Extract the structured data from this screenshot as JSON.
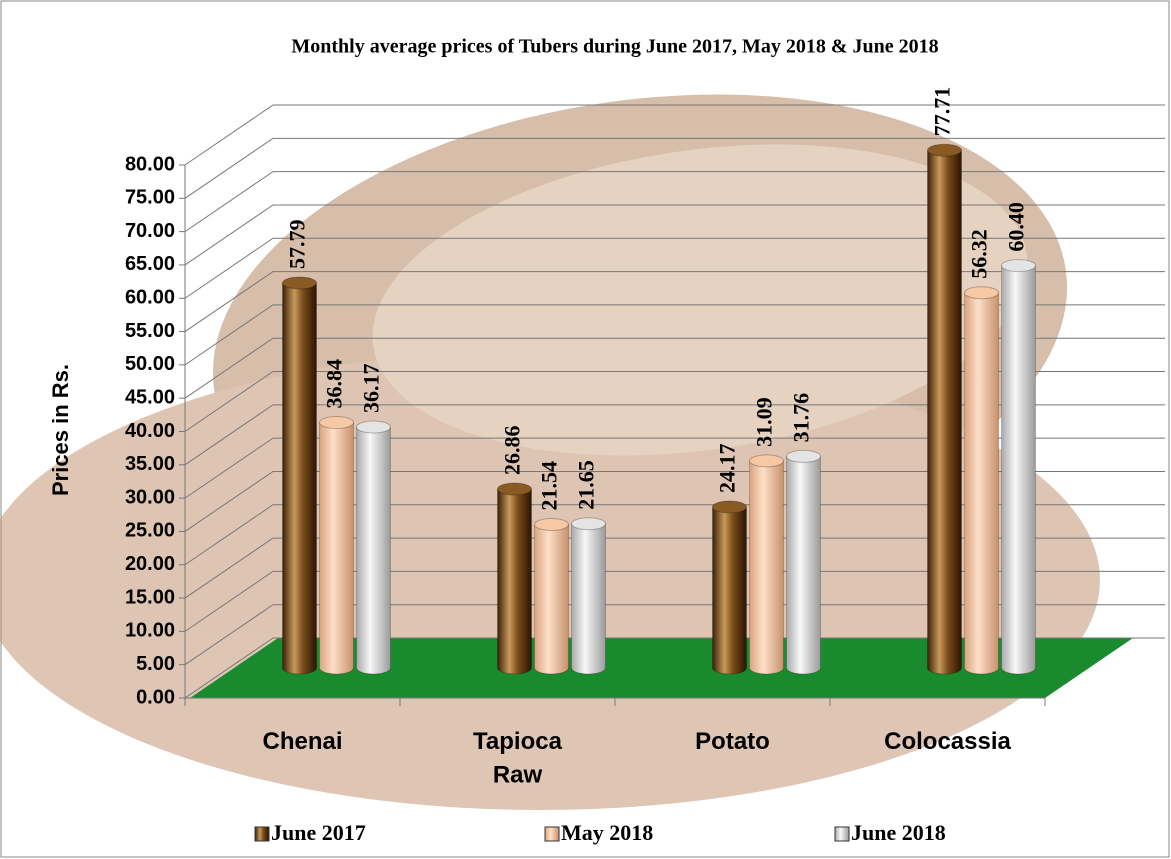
{
  "chart_data": {
    "type": "bar3d",
    "title": "Monthly average prices of Tubers during  June 2017,  May 2018 & June  2018",
    "y_label": "Prices in Rs.",
    "categories": [
      "Chenai",
      "Tapioca Raw",
      "Potato",
      "Colocassia"
    ],
    "series": [
      {
        "name": "June 2017",
        "color": "#8a5a24",
        "values": [
          57.79,
          26.86,
          24.17,
          77.71
        ],
        "value_labels": [
          "57.79",
          "26.86",
          "24.17",
          "77.71"
        ]
      },
      {
        "name": "May  2018",
        "color": "#f6c8a4",
        "values": [
          36.84,
          21.54,
          31.09,
          56.32
        ],
        "value_labels": [
          "36.84",
          "21.54",
          "31.09",
          "56.32"
        ]
      },
      {
        "name": "June 2018",
        "color": "#e4e4e4",
        "values": [
          36.17,
          21.65,
          31.76,
          60.4
        ],
        "value_labels": [
          "36.17",
          "21.65",
          "31.76",
          "60.40"
        ]
      }
    ],
    "ylim": [
      0,
      80
    ],
    "yticks": [
      {
        "value": 0,
        "label": "0.00"
      },
      {
        "value": 5,
        "label": "5.00"
      },
      {
        "value": 10,
        "label": "10.00"
      },
      {
        "value": 15,
        "label": "15.00"
      },
      {
        "value": 20,
        "label": "20.00"
      },
      {
        "value": 25,
        "label": "25.00"
      },
      {
        "value": 30,
        "label": "30.00"
      },
      {
        "value": 35,
        "label": "35.00"
      },
      {
        "value": 40,
        "label": "40.00"
      },
      {
        "value": 45,
        "label": "45.00"
      },
      {
        "value": 50,
        "label": "50.00"
      },
      {
        "value": 55,
        "label": "55.00"
      },
      {
        "value": 60,
        "label": "60.00"
      },
      {
        "value": 65,
        "label": "65.00"
      },
      {
        "value": 70,
        "label": "70.00"
      },
      {
        "value": 75,
        "label": "75.00"
      },
      {
        "value": 80,
        "label": "80.00"
      }
    ],
    "grid": true,
    "floor_color": "#1a8a2e",
    "legend": "bottom"
  }
}
